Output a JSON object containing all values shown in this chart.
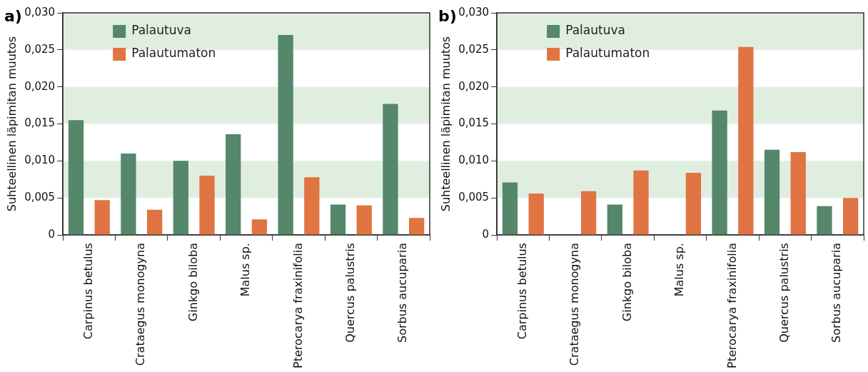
{
  "chart_data": [
    {
      "type": "bar",
      "title": "a)",
      "ylabel": "Suhteellinen läpimitan muutos",
      "categories": [
        "Carpinus betulus",
        "Crataegus monogyna",
        "Ginkgo biloba",
        "Malus sp.",
        "Pterocarya fraxinifolia",
        "Quercus palustris",
        "Sorbus aucuparia"
      ],
      "series": [
        {
          "name": "Palautuva",
          "color": "#55876a",
          "values": [
            0.0155,
            0.011,
            0.01,
            0.0136,
            0.027,
            0.0041,
            0.0177
          ]
        },
        {
          "name": "Palautumaton",
          "color": "#e07443",
          "values": [
            0.0047,
            0.0034,
            0.008,
            0.0021,
            0.0078,
            0.004,
            0.0023
          ]
        }
      ],
      "ylim": [
        0,
        0.03
      ],
      "yticks": [
        0,
        {
          "value": 0.005,
          "label": "0,005"
        },
        {
          "value": 0.01,
          "label": "0,010"
        },
        {
          "value": 0.015,
          "label": "0,015"
        },
        {
          "value": 0.02,
          "label": "0,020"
        },
        {
          "value": 0.025,
          "label": "0,025"
        },
        {
          "value": 0.03,
          "label": "0,030"
        }
      ],
      "bands": [
        {
          "axis": "y",
          "from": 0.005,
          "to": 0.01,
          "color": "#e0eee0"
        },
        {
          "axis": "y",
          "from": 0.015,
          "to": 0.02,
          "color": "#e0eee0"
        },
        {
          "axis": "y",
          "from": 0.025,
          "to": 0.03,
          "color": "#e0eee0"
        }
      ],
      "legend": "top left",
      "grid": false
    },
    {
      "type": "bar",
      "title": "b)",
      "ylabel": "Suhteellinen läpimitan muutos",
      "categories": [
        "Carpinus betulus",
        "Crataegus monogyna",
        "Ginkgo biloba",
        "Malus sp.",
        "Pterocarya fraxinifolia",
        "Quercus palustris",
        "Sorbus aucuparia"
      ],
      "series": [
        {
          "name": "Palautuva",
          "color": "#55876a",
          "values": [
            0.0071,
            null,
            0.0041,
            null,
            0.0168,
            0.0115,
            0.0039
          ]
        },
        {
          "name": "Palautumaton",
          "color": "#e07443",
          "values": [
            0.0056,
            0.0059,
            0.0087,
            0.0084,
            0.0254,
            0.0112,
            0.005
          ]
        }
      ],
      "ylim": [
        0,
        0.03
      ],
      "yticks": [
        0,
        {
          "value": 0.005,
          "label": "0,005"
        },
        {
          "value": 0.01,
          "label": "0,010"
        },
        {
          "value": 0.015,
          "label": "0,015"
        },
        {
          "value": 0.02,
          "label": "0,020"
        },
        {
          "value": 0.025,
          "label": "0,025"
        },
        {
          "value": 0.03,
          "label": "0,030"
        }
      ],
      "bands": [
        {
          "axis": "y",
          "from": 0.005,
          "to": 0.01,
          "color": "#e0eee0"
        },
        {
          "axis": "y",
          "from": 0.015,
          "to": 0.02,
          "color": "#e0eee0"
        },
        {
          "axis": "y",
          "from": 0.025,
          "to": 0.03,
          "color": "#e0eee0"
        }
      ],
      "legend": "top left",
      "grid": false
    }
  ]
}
